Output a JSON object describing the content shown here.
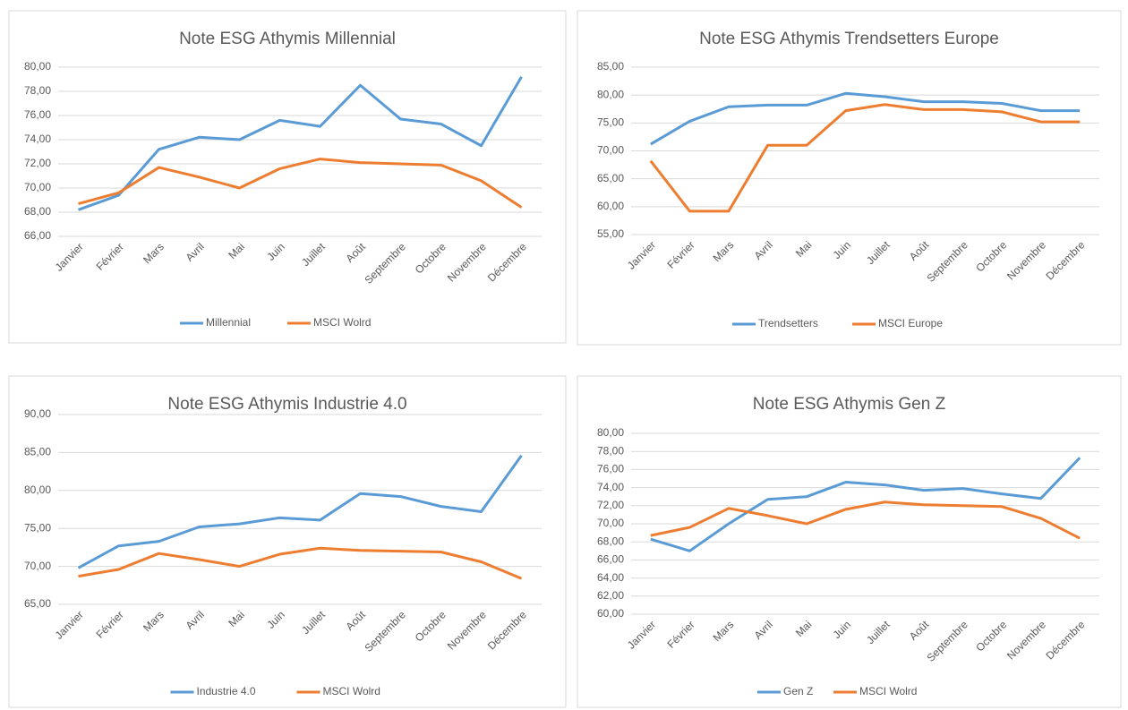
{
  "chart_data": [
    {
      "type": "line",
      "title": "Note ESG Athymis Millennial",
      "categories": [
        "Janvier",
        "Février",
        "Mars",
        "Avril",
        "Mai",
        "Juin",
        "Juillet",
        "Août",
        "Septembre",
        "Octobre",
        "Novembre",
        "Décembre"
      ],
      "series": [
        {
          "name": "Millennial",
          "color": "#5b9bd5",
          "values": [
            68.2,
            69.4,
            73.2,
            74.2,
            74.0,
            75.6,
            75.1,
            78.5,
            75.7,
            75.3,
            73.5,
            79.2
          ]
        },
        {
          "name": "MSCI Wolrd",
          "color": "#ed7d31",
          "values": [
            68.7,
            69.6,
            71.7,
            70.9,
            70.0,
            71.6,
            72.4,
            72.1,
            72.0,
            71.9,
            70.6,
            68.4
          ]
        }
      ],
      "ylim": [
        66,
        80
      ],
      "yticks": [
        {
          "value": 66,
          "label": "66,00"
        },
        {
          "value": 68,
          "label": "68,00"
        },
        {
          "value": 70,
          "label": "70,00"
        },
        {
          "value": 72,
          "label": "72,00"
        },
        {
          "value": 74,
          "label": "74,00"
        },
        {
          "value": 76,
          "label": "76,00"
        },
        {
          "value": 78,
          "label": "78,00"
        },
        {
          "value": 80,
          "label": "80,00"
        }
      ],
      "grid": true
    },
    {
      "type": "line",
      "title": "Note ESG Athymis Trendsetters Europe",
      "categories": [
        "Janvier",
        "Février",
        "Mars",
        "Avril",
        "Mai",
        "Juin",
        "Juillet",
        "Août",
        "Septembre",
        "Octobre",
        "Novembre",
        "Décembre"
      ],
      "series": [
        {
          "name": "Trendsetters",
          "color": "#5b9bd5",
          "values": [
            71.2,
            75.3,
            77.9,
            78.2,
            78.2,
            80.3,
            79.7,
            78.8,
            78.8,
            78.5,
            77.2,
            77.2
          ]
        },
        {
          "name": "MSCI Europe",
          "color": "#ed7d31",
          "values": [
            68.2,
            59.2,
            59.2,
            71.0,
            71.0,
            77.2,
            78.3,
            77.4,
            77.4,
            77.0,
            75.2,
            75.2
          ]
        }
      ],
      "ylim": [
        55,
        85
      ],
      "yticks": [
        {
          "value": 55,
          "label": "55,00"
        },
        {
          "value": 60,
          "label": "60,00"
        },
        {
          "value": 65,
          "label": "65,00"
        },
        {
          "value": 70,
          "label": "70,00"
        },
        {
          "value": 75,
          "label": "75,00"
        },
        {
          "value": 80,
          "label": "80,00"
        },
        {
          "value": 85,
          "label": "85,00"
        }
      ],
      "grid": true
    },
    {
      "type": "line",
      "title": "Note ESG Athymis Industrie 4.0",
      "categories": [
        "Janvier",
        "Février",
        "Mars",
        "Avril",
        "Mai",
        "Juin",
        "Juillet",
        "Août",
        "Septembre",
        "Octobre",
        "Novembre",
        "Décembre"
      ],
      "series": [
        {
          "name": "Industrie 4.0",
          "color": "#5b9bd5",
          "values": [
            69.8,
            72.7,
            73.3,
            75.2,
            75.6,
            76.4,
            76.1,
            79.6,
            79.2,
            77.9,
            77.2,
            84.6
          ]
        },
        {
          "name": "MSCI Wolrd",
          "color": "#ed7d31",
          "values": [
            68.7,
            69.6,
            71.7,
            70.9,
            70.0,
            71.6,
            72.4,
            72.1,
            72.0,
            71.9,
            70.6,
            68.4
          ]
        }
      ],
      "ylim": [
        65,
        90
      ],
      "yticks": [
        {
          "value": 65,
          "label": "65,00"
        },
        {
          "value": 70,
          "label": "70,00"
        },
        {
          "value": 75,
          "label": "75,00"
        },
        {
          "value": 80,
          "label": "80,00"
        },
        {
          "value": 85,
          "label": "85,00"
        },
        {
          "value": 90,
          "label": "90,00"
        }
      ],
      "grid": true
    },
    {
      "type": "line",
      "title": "Note ESG Athymis Gen Z",
      "categories": [
        "Janvier",
        "Février",
        "Mars",
        "Avril",
        "Mai",
        "Juin",
        "Juillet",
        "Août",
        "Septembre",
        "Octobre",
        "Novembre",
        "Décembre"
      ],
      "series": [
        {
          "name": "Gen Z",
          "color": "#5b9bd5",
          "values": [
            68.3,
            67.0,
            70.0,
            72.7,
            73.0,
            74.6,
            74.3,
            73.7,
            73.9,
            73.3,
            72.8,
            77.3
          ]
        },
        {
          "name": "MSCI Wolrd",
          "color": "#ed7d31",
          "values": [
            68.7,
            69.6,
            71.7,
            70.9,
            70.0,
            71.6,
            72.4,
            72.1,
            72.0,
            71.9,
            70.6,
            68.4
          ]
        }
      ],
      "ylim": [
        60,
        80
      ],
      "yticks": [
        {
          "value": 60,
          "label": "60,00"
        },
        {
          "value": 62,
          "label": "62,00"
        },
        {
          "value": 64,
          "label": "64,00"
        },
        {
          "value": 66,
          "label": "66,00"
        },
        {
          "value": 68,
          "label": "68,00"
        },
        {
          "value": 70,
          "label": "70,00"
        },
        {
          "value": 72,
          "label": "72,00"
        },
        {
          "value": 74,
          "label": "74,00"
        },
        {
          "value": 76,
          "label": "76,00"
        },
        {
          "value": 78,
          "label": "78,00"
        },
        {
          "value": 80,
          "label": "80,00"
        }
      ],
      "grid": true
    }
  ]
}
